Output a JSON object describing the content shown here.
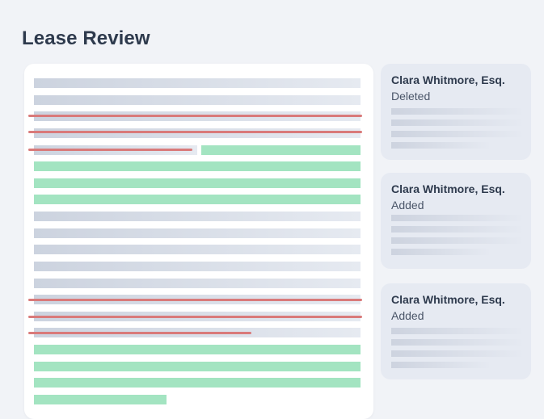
{
  "page": {
    "title": "Lease Review"
  },
  "document": {
    "add_color": "#a3e4c1",
    "delete_color": "#d97a7a"
  },
  "comments": [
    {
      "author": "Clara Whitmore, Esq.",
      "status": "Deleted"
    },
    {
      "author": "Clara Whitmore, Esq.",
      "status": "Added"
    },
    {
      "author": "Clara Whitmore, Esq.",
      "status": "Added"
    }
  ]
}
